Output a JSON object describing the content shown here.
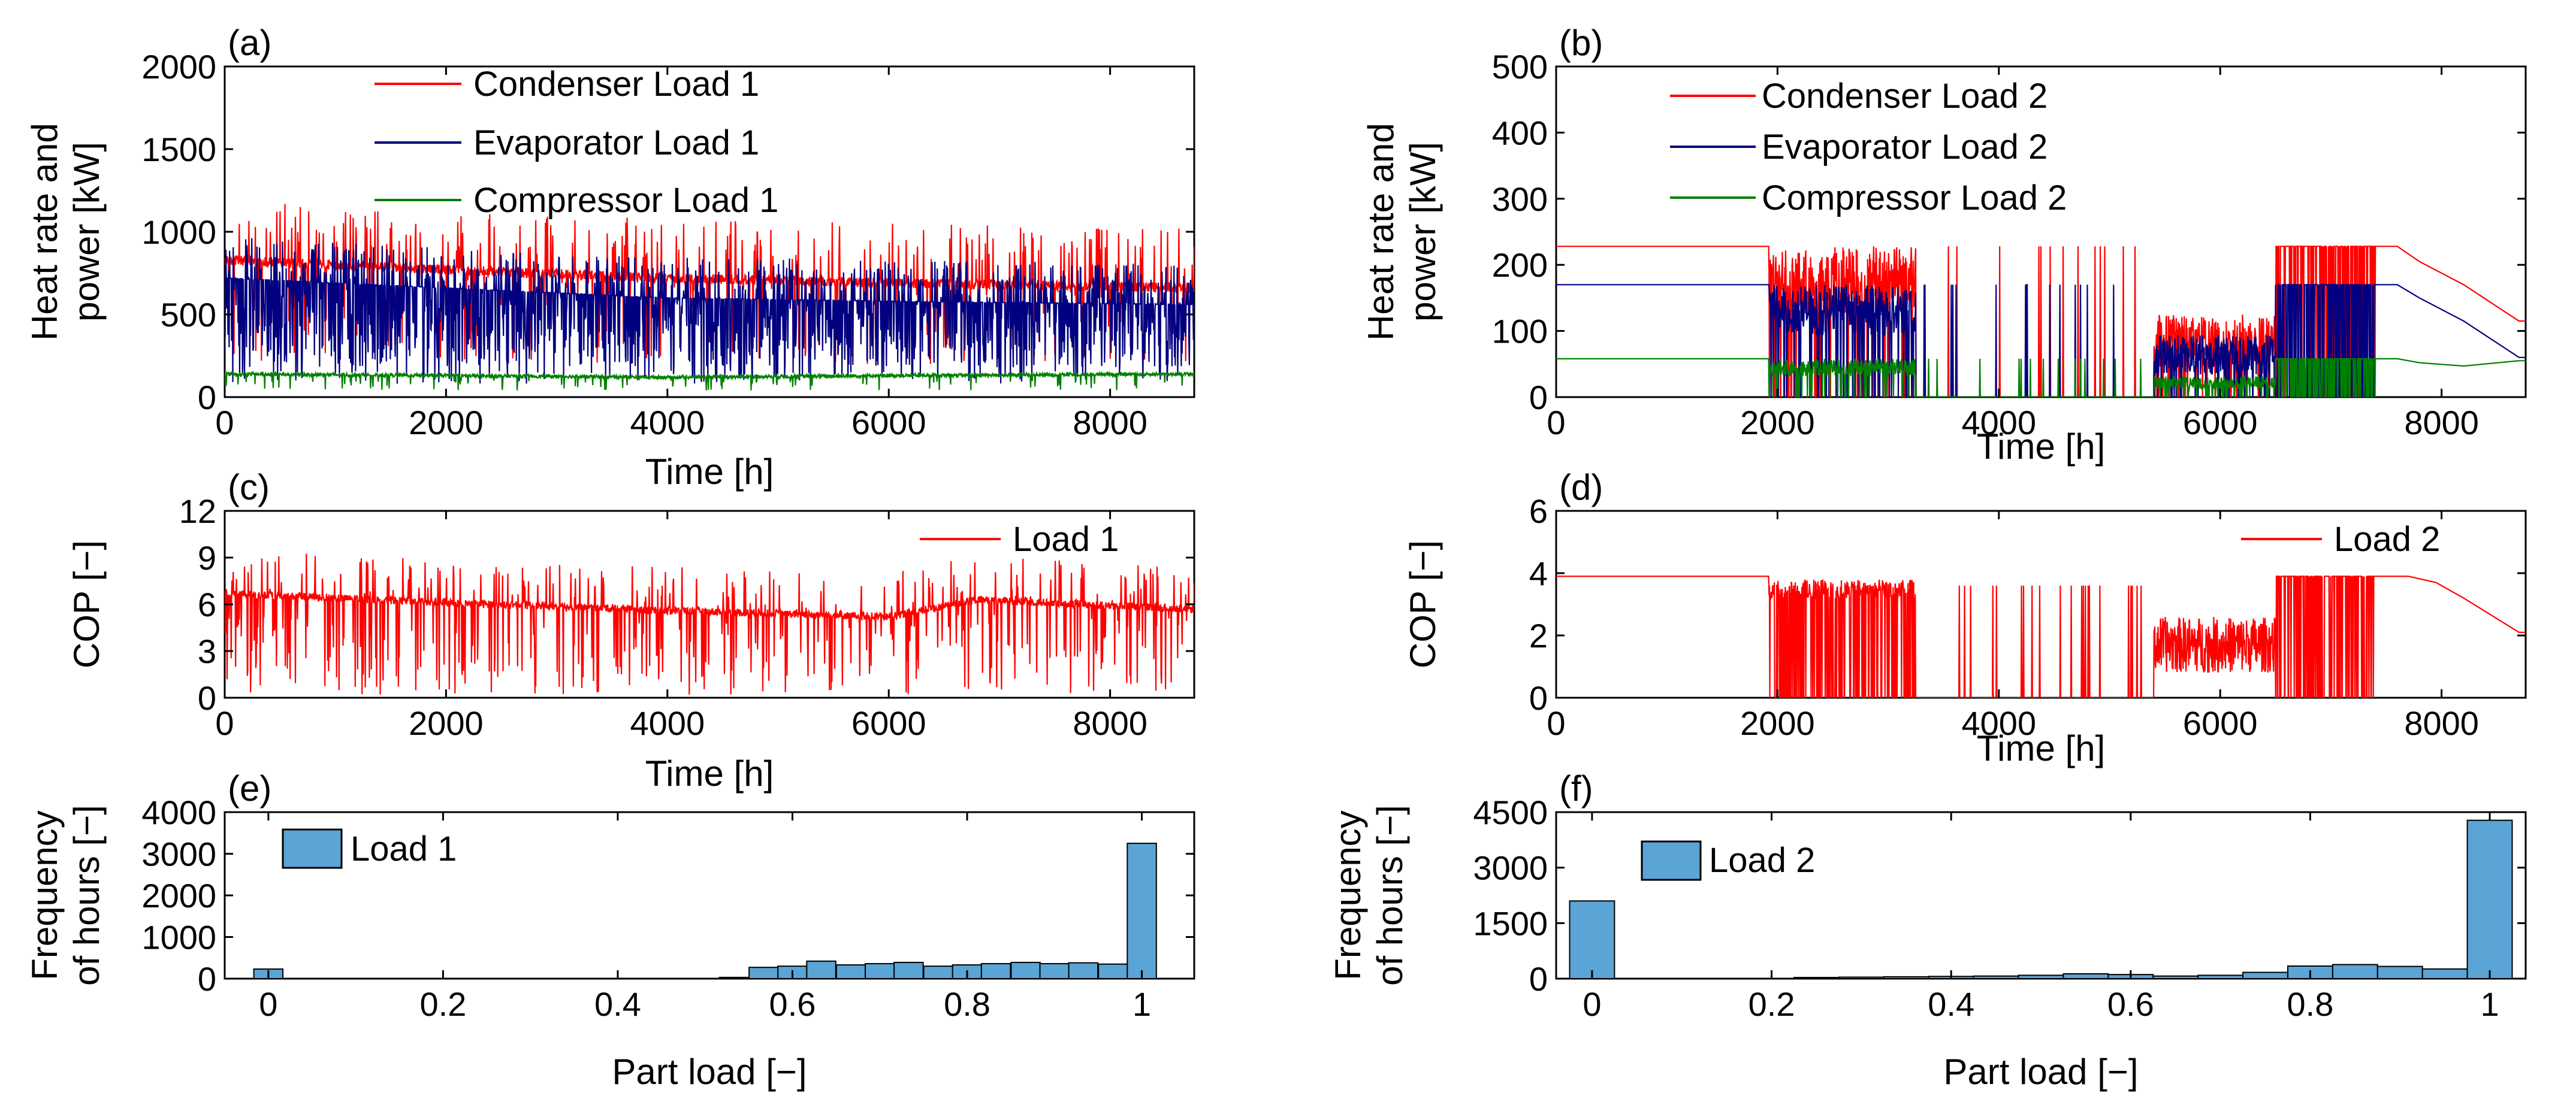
{
  "chart_data": [
    {
      "id": "a",
      "type": "line",
      "panel_label": "(a)",
      "xlabel": "Time [h]",
      "ylabel": [
        "Heat rate and",
        "power [kW]"
      ],
      "xlim": [
        0,
        8760
      ],
      "ylim": [
        0,
        2000
      ],
      "xticks": [
        0,
        2000,
        4000,
        6000,
        8000
      ],
      "yticks": [
        0,
        500,
        1000,
        1500,
        2000
      ],
      "legend_position": "top-left",
      "series": [
        {
          "name": "Condenser Load 1",
          "color": "#ff0000",
          "pattern": "condA",
          "x": [
            0,
            2000,
            4000,
            6000,
            8760
          ],
          "base": [
            860,
            800,
            750,
            720,
            690
          ]
        },
        {
          "name": "Evaporator Load 1",
          "color": "#000080",
          "pattern": "evapA",
          "x": [
            0,
            2000,
            4000,
            6000,
            8760
          ],
          "base": [
            720,
            660,
            600,
            580,
            560
          ]
        },
        {
          "name": "Compressor Load 1",
          "color": "#008000",
          "pattern": "compA",
          "x": [
            0,
            2000,
            4000,
            6000,
            8760
          ],
          "base": [
            140,
            130,
            120,
            130,
            140
          ]
        }
      ]
    },
    {
      "id": "b",
      "type": "line",
      "panel_label": "(b)",
      "xlabel": "Time [h]",
      "ylabel": [
        "Heat rate and",
        "power [kW]"
      ],
      "xlim": [
        0,
        8760
      ],
      "ylim": [
        0,
        500
      ],
      "xticks": [
        0,
        2000,
        4000,
        6000,
        8000
      ],
      "yticks": [
        0,
        100,
        200,
        300,
        400,
        500
      ],
      "legend_position": "top-left",
      "series": [
        {
          "name": "Condenser Load 2",
          "color": "#ff0000",
          "pattern": "condB",
          "x": [
            0,
            1920,
            7600,
            7800,
            8200,
            8700
          ],
          "base": [
            228,
            228,
            228,
            205,
            170,
            115
          ]
        },
        {
          "name": "Evaporator Load 2",
          "color": "#000080",
          "pattern": "evapB",
          "x": [
            0,
            1920,
            7600,
            7800,
            8200,
            8700
          ],
          "base": [
            170,
            170,
            170,
            150,
            115,
            60
          ]
        },
        {
          "name": "Compressor Load 2",
          "color": "#008000",
          "pattern": "compB",
          "x": [
            0,
            1920,
            7600,
            7800,
            8200,
            8700
          ],
          "base": [
            58,
            58,
            58,
            52,
            47,
            55
          ]
        }
      ]
    },
    {
      "id": "c",
      "type": "line",
      "panel_label": "(c)",
      "xlabel": "Time [h]",
      "ylabel": [
        "COP [−]"
      ],
      "xlim": [
        0,
        8760
      ],
      "ylim": [
        0,
        12
      ],
      "xticks": [
        0,
        2000,
        4000,
        6000,
        8000
      ],
      "yticks": [
        0,
        3,
        6,
        9,
        12
      ],
      "legend_position": "top-right",
      "series": [
        {
          "name": "Load 1",
          "color": "#ff0000",
          "pattern": "copA",
          "x": [
            0,
            2000,
            4000,
            6000,
            6800,
            8760
          ],
          "base": [
            6.7,
            6.1,
            5.6,
            5.2,
            6.3,
            5.7
          ]
        }
      ]
    },
    {
      "id": "d",
      "type": "line",
      "panel_label": "(d)",
      "xlabel": "Time [h]",
      "ylabel": [
        "COP [−]"
      ],
      "xlim": [
        0,
        8760
      ],
      "ylim": [
        0,
        6
      ],
      "xticks": [
        0,
        2000,
        4000,
        6000,
        8000
      ],
      "yticks": [
        0,
        2,
        4,
        6
      ],
      "legend_position": "top-right",
      "series": [
        {
          "name": "Load 2",
          "color": "#ff0000",
          "pattern": "copB",
          "x": [
            0,
            1920,
            7700,
            7950,
            8200,
            8700
          ],
          "base": [
            3.9,
            3.9,
            3.9,
            3.7,
            3.2,
            2.1
          ]
        }
      ]
    },
    {
      "id": "e",
      "type": "bar",
      "panel_label": "(e)",
      "xlabel": "Part load [−]",
      "ylabel": [
        "Frequency",
        "of hours [−]"
      ],
      "xlim": [
        -0.05,
        1.06
      ],
      "ylim": [
        0,
        4000
      ],
      "xticks": [
        0,
        0.2,
        0.4,
        0.6,
        0.8,
        1
      ],
      "yticks": [
        0,
        1000,
        2000,
        3000,
        4000
      ],
      "bar_color": "#5aa4d6",
      "legend_position": "top-left",
      "series": [
        {
          "name": "Load 1"
        }
      ],
      "bin_width": 0.0333,
      "bin_centers": [
        0.0,
        0.033,
        0.067,
        0.1,
        0.133,
        0.167,
        0.2,
        0.233,
        0.267,
        0.3,
        0.333,
        0.367,
        0.4,
        0.433,
        0.467,
        0.5,
        0.533,
        0.567,
        0.6,
        0.633,
        0.667,
        0.7,
        0.733,
        0.767,
        0.8,
        0.833,
        0.867,
        0.9,
        0.933,
        0.967,
        1.0
      ],
      "values": [
        230,
        0,
        0,
        0,
        0,
        0,
        0,
        0,
        0,
        0,
        0,
        0,
        0,
        0,
        0,
        0,
        30,
        270,
        300,
        420,
        330,
        360,
        390,
        300,
        330,
        360,
        390,
        360,
        380,
        350,
        3250
      ]
    },
    {
      "id": "f",
      "type": "bar",
      "panel_label": "(f)",
      "xlabel": "Part load [−]",
      "ylabel": [
        "Frequency",
        "of hours [−]"
      ],
      "xlim": [
        -0.04,
        1.04
      ],
      "ylim": [
        0,
        4500
      ],
      "xticks": [
        0,
        0.2,
        0.4,
        0.6,
        0.8,
        1
      ],
      "yticks": [
        0,
        1500,
        3000,
        4500
      ],
      "bar_color": "#5aa4d6",
      "legend_position": "top-left",
      "series": [
        {
          "name": "Load 2"
        }
      ],
      "bin_width": 0.05,
      "bin_centers": [
        0.0,
        0.05,
        0.1,
        0.15,
        0.2,
        0.25,
        0.3,
        0.35,
        0.4,
        0.45,
        0.5,
        0.55,
        0.6,
        0.65,
        0.7,
        0.75,
        0.8,
        0.85,
        0.9,
        0.95,
        1.0
      ],
      "values": [
        2100,
        0,
        0,
        0,
        0,
        30,
        40,
        50,
        60,
        70,
        90,
        130,
        110,
        70,
        90,
        170,
        340,
        380,
        330,
        260,
        4280
      ]
    }
  ]
}
